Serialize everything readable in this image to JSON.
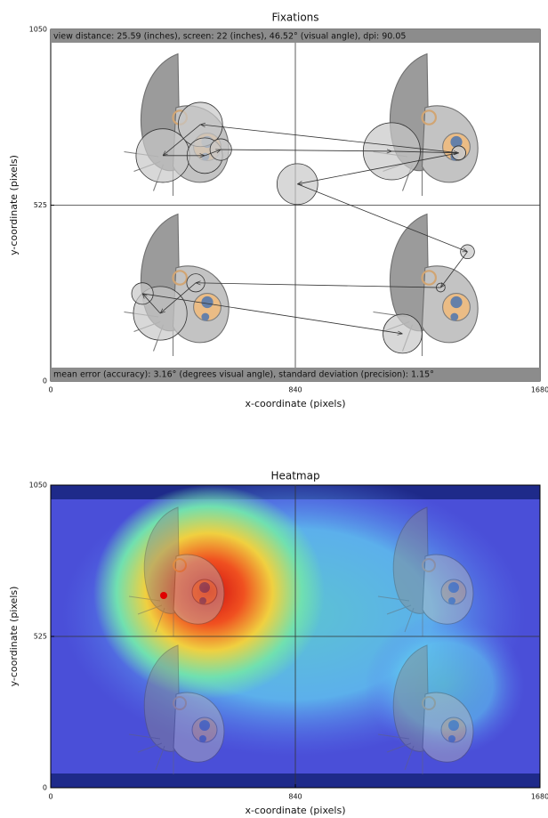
{
  "chart_data": [
    {
      "type": "scatter",
      "title": "Fixations",
      "header": "view distance: 25.59 (inches), screen:  22 (inches), 46.52° (visual angle), dpi: 90.05",
      "footer": "mean error (accuracy):  3.16° (degrees visual angle), standard deviation (precision):  1.15°",
      "xlabel": "x-coordinate (pixels)",
      "ylabel": "y-coordinate (pixels)",
      "xlim": [
        0,
        1680
      ],
      "ylim": [
        0,
        1050
      ],
      "xticks": [
        0,
        840,
        1680
      ],
      "yticks": [
        0,
        525,
        1050
      ],
      "color": "#c8c8c8",
      "x": [
        1401,
        514,
        385,
        529,
        584,
        1171,
        1401,
        847,
        1431,
        1339,
        498,
        376,
        315,
        1208
      ],
      "y": [
        681,
        766,
        673,
        673,
        691,
        686,
        681,
        588,
        386,
        279,
        293,
        202,
        261,
        141
      ],
      "sizes": [
        24,
        76,
        92,
        61,
        37,
        98,
        24,
        70,
        24,
        15,
        31,
        92,
        37,
        67
      ]
    },
    {
      "type": "heatmap",
      "title": "Heatmap",
      "xlabel": "x-coordinate (pixels)",
      "ylabel": "y-coordinate (pixels)",
      "xlim": [
        0,
        1680
      ],
      "ylim": [
        0,
        1050
      ],
      "xticks": [
        0,
        840,
        1680
      ],
      "yticks": [
        0,
        525,
        1050
      ]
    }
  ]
}
